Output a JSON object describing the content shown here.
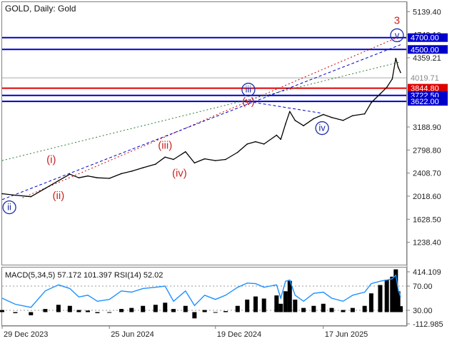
{
  "header": {
    "title": "GOLD, Daily:  Gold"
  },
  "colors": {
    "price": "#000000",
    "blue_level": "#0000cc",
    "red_level": "#dd0000",
    "red_label": "#cc2222",
    "wave_blue": "#1a2aa8",
    "red_trend": "#cc0000",
    "blue_trend": "#0000cc",
    "green_trend": "#2e7d32",
    "rsi": "#1e90ff",
    "axis_text": "#222222",
    "grid": "#c8c8c8"
  },
  "chart_data": [
    {
      "type": "line",
      "name": "price",
      "x_axis": {
        "tick_labels": [
          "29 Dec 2023",
          "25 Jun 2024",
          "19 Dec 2024",
          "17 Jun 2025"
        ],
        "tick_dates": [
          "2023-12-29",
          "2024-06-25",
          "2024-12-19",
          "2025-06-17"
        ],
        "range": [
          "2023-12-29",
          "2025-10-24"
        ]
      },
      "y_axis": {
        "range": [
          860,
          5300
        ],
        "tick_labels": [
          "5139.40",
          "4749.10",
          "4359.21",
          "3188.90",
          "2798.80",
          "2408.70",
          "2018.60",
          "1628.50",
          "1238.40"
        ]
      },
      "series": [
        {
          "x": [
            "2023-12-29",
            "2024-01-20",
            "2024-02-15",
            "2024-03-10",
            "2024-04-01",
            "2024-04-20",
            "2024-05-05",
            "2024-05-20",
            "2024-06-05",
            "2024-06-25",
            "2024-07-15",
            "2024-08-01",
            "2024-08-20",
            "2024-09-10",
            "2024-09-26",
            "2024-10-10",
            "2024-10-30",
            "2024-11-14",
            "2024-12-01",
            "2024-12-19",
            "2025-01-05",
            "2025-01-25",
            "2025-02-10",
            "2025-02-24",
            "2025-03-10",
            "2025-03-31",
            "2025-04-07",
            "2025-04-15",
            "2025-04-22",
            "2025-05-01",
            "2025-05-15",
            "2025-06-01",
            "2025-06-17",
            "2025-07-01",
            "2025-07-20",
            "2025-08-05",
            "2025-08-25",
            "2025-09-05",
            "2025-09-20",
            "2025-10-01",
            "2025-10-10",
            "2025-10-16",
            "2025-10-20",
            "2025-10-24"
          ],
          "values": [
            2060,
            2035,
            2010,
            2150,
            2280,
            2390,
            2330,
            2360,
            2330,
            2320,
            2400,
            2440,
            2500,
            2560,
            2680,
            2640,
            2770,
            2580,
            2650,
            2620,
            2640,
            2760,
            2900,
            2940,
            2900,
            3050,
            2980,
            3240,
            3450,
            3300,
            3210,
            3330,
            3400,
            3350,
            3300,
            3380,
            3410,
            3600,
            3750,
            3860,
            4000,
            4350,
            4200,
            4110
          ]
        }
      ],
      "levels": [
        {
          "label": "4700.00",
          "value": 4700,
          "color": "#0000cc"
        },
        {
          "label": "4500.00",
          "value": 4500,
          "color": "#0000cc"
        },
        {
          "label": "4019.71",
          "value": 4019.71,
          "color": "#aaaaaa"
        },
        {
          "label": "3844.80",
          "value": 3844.8,
          "color": "#dd0000"
        },
        {
          "label": "3722.50",
          "value": 3722.5,
          "color": "#0000cc"
        },
        {
          "label": "3622.00",
          "value": 3622,
          "color": "#0000cc"
        }
      ],
      "waves": [
        {
          "label": "(i)",
          "x": "2024-03-20",
          "y": 2640,
          "color": "red"
        },
        {
          "label": "(ii)",
          "x": "2024-04-01",
          "y": 2030,
          "color": "red"
        },
        {
          "label": "(iii)",
          "x": "2024-09-26",
          "y": 2880,
          "color": "red"
        },
        {
          "label": "(iv)",
          "x": "2024-10-20",
          "y": 2410,
          "color": "red"
        },
        {
          "label": "(v)",
          "x": "2025-02-12",
          "y": 3620,
          "color": "red"
        },
        {
          "label": "ii",
          "x": "2024-01-10",
          "y": 1830,
          "color": "blue-circle"
        },
        {
          "label": "iii",
          "x": "2025-02-12",
          "y": 3820,
          "color": "blue-circle"
        },
        {
          "label": "iv",
          "x": "2025-06-15",
          "y": 3170,
          "color": "blue-circle"
        },
        {
          "label": "v",
          "x": "2025-10-18",
          "y": 4740,
          "color": "blue-circle"
        },
        {
          "label": "3",
          "x": "2025-10-18",
          "y": 4990,
          "color": "red"
        }
      ],
      "trend_lines": [
        {
          "style": "red-dotted",
          "from": [
            "2024-02-01",
            1990
          ],
          "to": [
            "2025-10-18",
            4700
          ]
        },
        {
          "style": "red-dotted",
          "from": [
            "2025-10-18",
            4700
          ],
          "to": [
            "2025-10-24",
            4600
          ]
        },
        {
          "style": "blue-dashed",
          "from": [
            "2023-12-29",
            1960
          ],
          "to": [
            "2025-10-24",
            4580
          ]
        },
        {
          "style": "green-dotted",
          "from": [
            "2023-12-29",
            2620
          ],
          "to": [
            "2025-10-24",
            4290
          ]
        },
        {
          "style": "blue-dashed",
          "from": [
            "2025-02-12",
            3620
          ],
          "to": [
            "2025-06-15",
            3420
          ]
        }
      ]
    },
    {
      "type": "bar",
      "title": "MACD(5,34,5) 57.172 101.397 RSI(14) 52.02",
      "y_axis": {
        "tick_labels": [
          "414.109",
          "70.00",
          "30.00",
          "-112.985"
        ]
      },
      "series": [
        {
          "name": "MACD",
          "x": [
            "2023-12-29",
            "2024-01-20",
            "2024-02-15",
            "2024-03-10",
            "2024-04-01",
            "2024-04-20",
            "2024-05-05",
            "2024-05-20",
            "2024-06-05",
            "2024-06-25",
            "2024-07-15",
            "2024-08-01",
            "2024-08-20",
            "2024-09-10",
            "2024-09-26",
            "2024-10-10",
            "2024-10-30",
            "2024-11-14",
            "2024-12-01",
            "2024-12-19",
            "2025-01-05",
            "2025-01-25",
            "2025-02-10",
            "2025-02-24",
            "2025-03-10",
            "2025-03-31",
            "2025-04-07",
            "2025-04-15",
            "2025-04-22",
            "2025-05-01",
            "2025-05-15",
            "2025-06-01",
            "2025-06-17",
            "2025-07-01",
            "2025-07-20",
            "2025-08-05",
            "2025-08-25",
            "2025-09-05",
            "2025-09-20",
            "2025-10-01",
            "2025-10-10",
            "2025-10-16",
            "2025-10-20",
            "2025-10-24"
          ],
          "values": [
            20,
            -10,
            -30,
            30,
            70,
            60,
            20,
            15,
            -10,
            -5,
            30,
            40,
            60,
            70,
            90,
            30,
            60,
            -60,
            20,
            0,
            10,
            60,
            120,
            150,
            130,
            160,
            80,
            200,
            300,
            120,
            40,
            60,
            80,
            40,
            20,
            40,
            60,
            180,
            260,
            310,
            340,
            410,
            200,
            57
          ]
        },
        {
          "name": "RSI",
          "x": [
            "2023-12-29",
            "2024-01-20",
            "2024-02-15",
            "2024-03-10",
            "2024-04-01",
            "2024-04-20",
            "2024-05-05",
            "2024-05-20",
            "2024-06-05",
            "2024-06-25",
            "2024-07-15",
            "2024-08-01",
            "2024-08-20",
            "2024-09-10",
            "2024-09-26",
            "2024-10-10",
            "2024-10-30",
            "2024-11-14",
            "2024-12-01",
            "2024-12-19",
            "2025-01-05",
            "2025-01-25",
            "2025-02-10",
            "2025-02-24",
            "2025-03-10",
            "2025-03-31",
            "2025-04-07",
            "2025-04-15",
            "2025-04-22",
            "2025-05-01",
            "2025-05-15",
            "2025-06-01",
            "2025-06-17",
            "2025-07-01",
            "2025-07-20",
            "2025-08-05",
            "2025-08-25",
            "2025-09-05",
            "2025-09-20",
            "2025-10-01",
            "2025-10-10",
            "2025-10-16",
            "2025-10-20",
            "2025-10-24"
          ],
          "values": [
            50,
            40,
            35,
            62,
            72,
            66,
            52,
            55,
            45,
            48,
            62,
            60,
            66,
            68,
            70,
            45,
            62,
            38,
            55,
            48,
            55,
            68,
            75,
            74,
            68,
            72,
            50,
            78,
            80,
            55,
            45,
            58,
            60,
            50,
            45,
            55,
            60,
            74,
            78,
            80,
            82,
            88,
            65,
            52
          ]
        }
      ]
    }
  ]
}
